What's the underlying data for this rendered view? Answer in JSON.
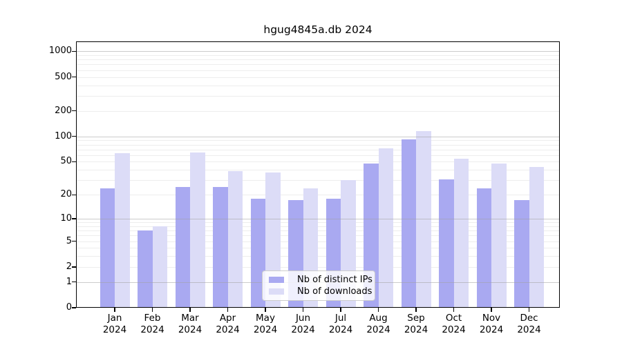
{
  "title": "hgug4845a.db 2024",
  "legend": {
    "items": [
      {
        "label": "Nb of distinct IPs",
        "color": "#a9a9f1"
      },
      {
        "label": "Nb of downloads",
        "color": "#dcdcf7"
      }
    ]
  },
  "chart_data": {
    "type": "bar",
    "title": "hgug4845a.db 2024",
    "categories": [
      "Jan",
      "Feb",
      "Mar",
      "Apr",
      "May",
      "Jun",
      "Jul",
      "Aug",
      "Sep",
      "Oct",
      "Nov",
      "Dec"
    ],
    "year": "2024",
    "series": [
      {
        "name": "Nb of distinct IPs",
        "color": "#a9a9f1",
        "values": [
          24,
          7,
          25,
          25,
          18,
          17,
          18,
          48,
          92,
          31,
          24,
          17
        ]
      },
      {
        "name": "Nb of downloads",
        "color": "#dcdcf7",
        "values": [
          63,
          8,
          65,
          39,
          37,
          24,
          30,
          72,
          115,
          54,
          48,
          43
        ]
      }
    ],
    "xlabel": "",
    "ylabel": "",
    "y_scale": "log1p",
    "y_ticks": [
      0,
      1,
      2,
      5,
      10,
      20,
      50,
      100,
      200,
      500,
      1000
    ],
    "minor_grid_ticks": [
      2,
      3,
      4,
      5,
      6,
      7,
      8,
      9,
      20,
      30,
      40,
      50,
      60,
      70,
      80,
      90,
      200,
      300,
      400,
      500,
      600,
      700,
      800,
      900
    ],
    "major_grid_ticks": [
      1,
      10,
      100,
      1000
    ],
    "ylim": [
      0,
      1300
    ],
    "grid": true,
    "legend_position": "inside-bottom-center",
    "colors": {
      "axis": "#000000",
      "major_grid": "#c8c8c8",
      "minor_grid": "#ededed",
      "background": "#ffffff"
    }
  }
}
